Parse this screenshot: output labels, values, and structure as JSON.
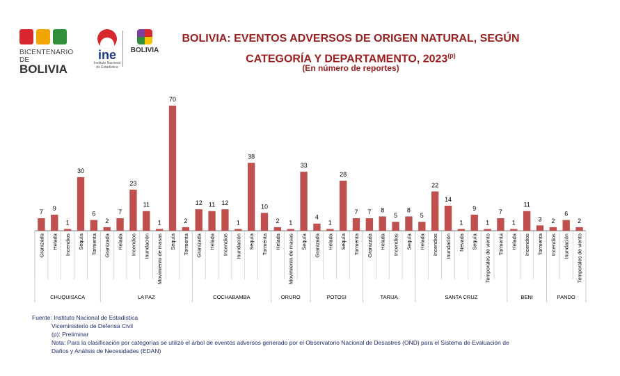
{
  "header": {
    "logo_bicentenario_line1": "BICENTENARIO DE",
    "logo_bicentenario_line2": "BOLIVIA",
    "logo_ine_word": "ine",
    "logo_ine_sub": "Instituto Nacional de Estadística",
    "logo_estado_word": "BOLIVIA",
    "title_line1": "BOLIVIA: EVENTOS ADVERSOS DE ORIGEN NATURAL, SEGÚN",
    "title_line2": "CATEGORÍA Y DEPARTAMENTO, 2023",
    "title_sup": "(p)",
    "subtitle": "(En número de reportes)"
  },
  "colors": {
    "bar": "#c0504d",
    "title": "#9c1d1d",
    "footer": "#1f2a6b",
    "axis": "#7f7f7f"
  },
  "chart_data": {
    "type": "bar",
    "ylim": [
      0,
      70
    ],
    "groups": [
      {
        "name": "CHUQUISACA",
        "categories": [
          "Granizada",
          "Helada",
          "Incendios",
          "Sequía",
          "Tormenta"
        ],
        "values": [
          7,
          9,
          1,
          30,
          6
        ]
      },
      {
        "name": "LA PAZ",
        "categories": [
          "Granizada",
          "Helada",
          "Incendios",
          "Inundación",
          "Movimiento de masas",
          "Sequía",
          "Tormenta"
        ],
        "values": [
          2,
          7,
          23,
          11,
          1,
          70,
          2
        ]
      },
      {
        "name": "COCHABAMBA",
        "categories": [
          "Granizada",
          "Helada",
          "Incendios",
          "Inundación",
          "Sequía",
          "Tormenta"
        ],
        "values": [
          12,
          11,
          12,
          1,
          38,
          10
        ]
      },
      {
        "name": "ORURO",
        "categories": [
          "Helada",
          "Movimiento de masas",
          "Sequía"
        ],
        "values": [
          2,
          1,
          33
        ]
      },
      {
        "name": "POTOSI",
        "categories": [
          "Granizada",
          "Helada",
          "Sequía",
          "Tormenta"
        ],
        "values": [
          4,
          1,
          28,
          7
        ]
      },
      {
        "name": "TARIJA",
        "categories": [
          "Granizada",
          "Helada",
          "Incendios",
          "Sequía"
        ],
        "values": [
          7,
          8,
          5,
          8
        ]
      },
      {
        "name": "SANTA CRUZ",
        "categories": [
          "Helada",
          "Incendios",
          "Inundación",
          "Nevada",
          "Sequía",
          "Temporales de viento",
          "Tormenta"
        ],
        "values": [
          5,
          22,
          14,
          1,
          9,
          1,
          7
        ]
      },
      {
        "name": "BENI",
        "categories": [
          "Helada",
          "Incendios",
          "Tormenta"
        ],
        "values": [
          1,
          11,
          3
        ]
      },
      {
        "name": "PANDO",
        "categories": [
          "Incendios",
          "Inundación",
          "Temporales de viento"
        ],
        "values": [
          2,
          6,
          2
        ]
      }
    ]
  },
  "footer": {
    "line1": "Fuente: Instituto Nacional de Estadística",
    "line2": "Viceministerio de Defensa Civil",
    "line3": "(p): Preliminar",
    "line4": "Nota: Para la clasificación por categorías se utilizó el árbol de eventos adversos generado por el Observatorio Nacional de Desastres (OND) para el Sistema de Evaluación de",
    "line5": "Daños y Análisis de Necesidades (EDAN)"
  }
}
